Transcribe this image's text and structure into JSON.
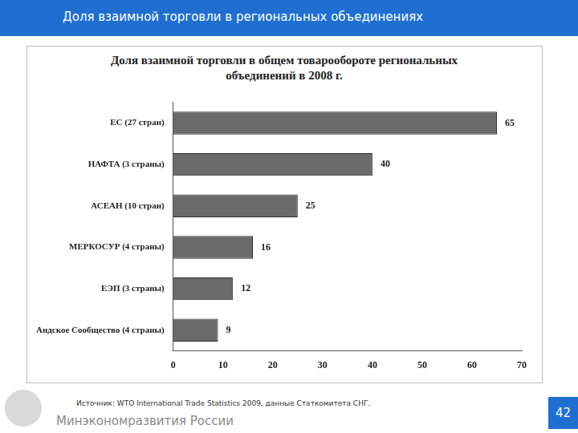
{
  "header": {
    "title": "Доля взаимной торговли в региональных объединениях"
  },
  "chart_data": {
    "type": "bar",
    "orientation": "horizontal",
    "title": "Доля взаимной торговли в общем товарообороте региональных объединений в 2008 г.",
    "categories": [
      "ЕС (27 стран)",
      "НАФТА (3 страны)",
      "АСЕАН (10 стран)",
      "МЕРКОСУР (4 страны)",
      "ЕЭП (3 страны)",
      "Андское Сообщество (4 страны)"
    ],
    "values": [
      65,
      40,
      25,
      16,
      12,
      9
    ],
    "color": "#6b6b6b",
    "xlim": [
      0,
      70
    ],
    "xticks": [
      0,
      10,
      20,
      30,
      40,
      50,
      60,
      70
    ],
    "grid": false,
    "data_labels": true
  },
  "source": "Источник: WTO International Trade Statistics 2009, данные Статкомитета СНГ.",
  "footer": {
    "organization": "Минэкономразвития России",
    "page": 42
  }
}
